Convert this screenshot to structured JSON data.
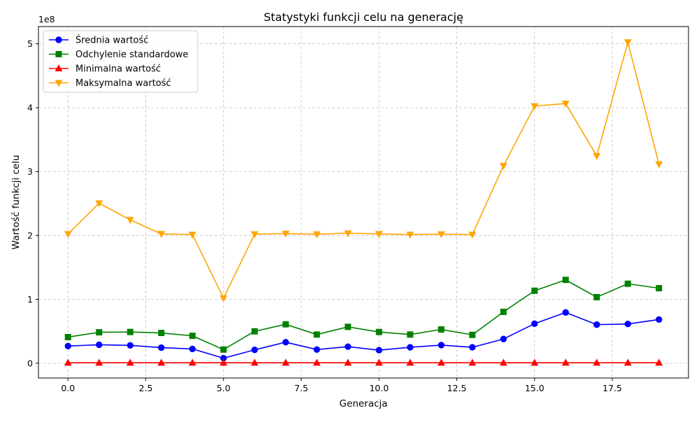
{
  "chart_data": {
    "type": "line",
    "title": "Statystyki funkcji celu na generację",
    "xlabel": "Generacja",
    "ylabel": "Wartość funkcji celu",
    "y_offset_label": "1e8",
    "y_scale_factor": 100000000,
    "xlim": [
      -0.95,
      19.95
    ],
    "ylim": [
      -23000000,
      527000000
    ],
    "x_ticks": [
      0.0,
      2.5,
      5.0,
      7.5,
      10.0,
      12.5,
      15.0,
      17.5
    ],
    "x_tick_labels": [
      "0.0",
      "2.5",
      "5.0",
      "7.5",
      "10.0",
      "12.5",
      "15.0",
      "17.5"
    ],
    "y_ticks": [
      0,
      100000000,
      200000000,
      300000000,
      400000000,
      500000000
    ],
    "y_tick_labels": [
      "0",
      "1",
      "2",
      "3",
      "4",
      "5"
    ],
    "grid": true,
    "legend_position": "top-left",
    "x": [
      0,
      1,
      2,
      3,
      4,
      5,
      6,
      7,
      8,
      9,
      10,
      11,
      12,
      13,
      14,
      15,
      16,
      17,
      18,
      19
    ],
    "series": [
      {
        "name": "Średnia wartość",
        "color": "#0000ff",
        "marker": "circle",
        "values": [
          27000000,
          29000000,
          28000000,
          24500000,
          22500000,
          8000000,
          21000000,
          33000000,
          21500000,
          26000000,
          20500000,
          25000000,
          28500000,
          25000000,
          38000000,
          62000000,
          79500000,
          60500000,
          61500000,
          68500000
        ]
      },
      {
        "name": "Odchylenie standardowe",
        "color": "#008000",
        "marker": "square",
        "values": [
          41000000,
          48500000,
          49000000,
          47500000,
          43000000,
          21500000,
          50000000,
          61000000,
          45000000,
          57000000,
          49000000,
          45000000,
          53000000,
          44500000,
          80500000,
          113500000,
          130500000,
          103500000,
          124500000,
          117500000
        ]
      },
      {
        "name": "Minimalna wartość",
        "color": "#ff0000",
        "marker": "triangle-up",
        "values": [
          800000,
          800000,
          800000,
          800000,
          800000,
          800000,
          800000,
          800000,
          800000,
          800000,
          800000,
          800000,
          800000,
          800000,
          800000,
          800000,
          800000,
          800000,
          800000,
          800000
        ]
      },
      {
        "name": "Maksymalna wartość",
        "color": "#ffa500",
        "marker": "triangle-down",
        "values": [
          202500000,
          250500000,
          224500000,
          202500000,
          201500000,
          102000000,
          202000000,
          203000000,
          202000000,
          203500000,
          202500000,
          201500000,
          202000000,
          201500000,
          309000000,
          402500000,
          406500000,
          324500000,
          502500000,
          311500000
        ]
      }
    ]
  }
}
